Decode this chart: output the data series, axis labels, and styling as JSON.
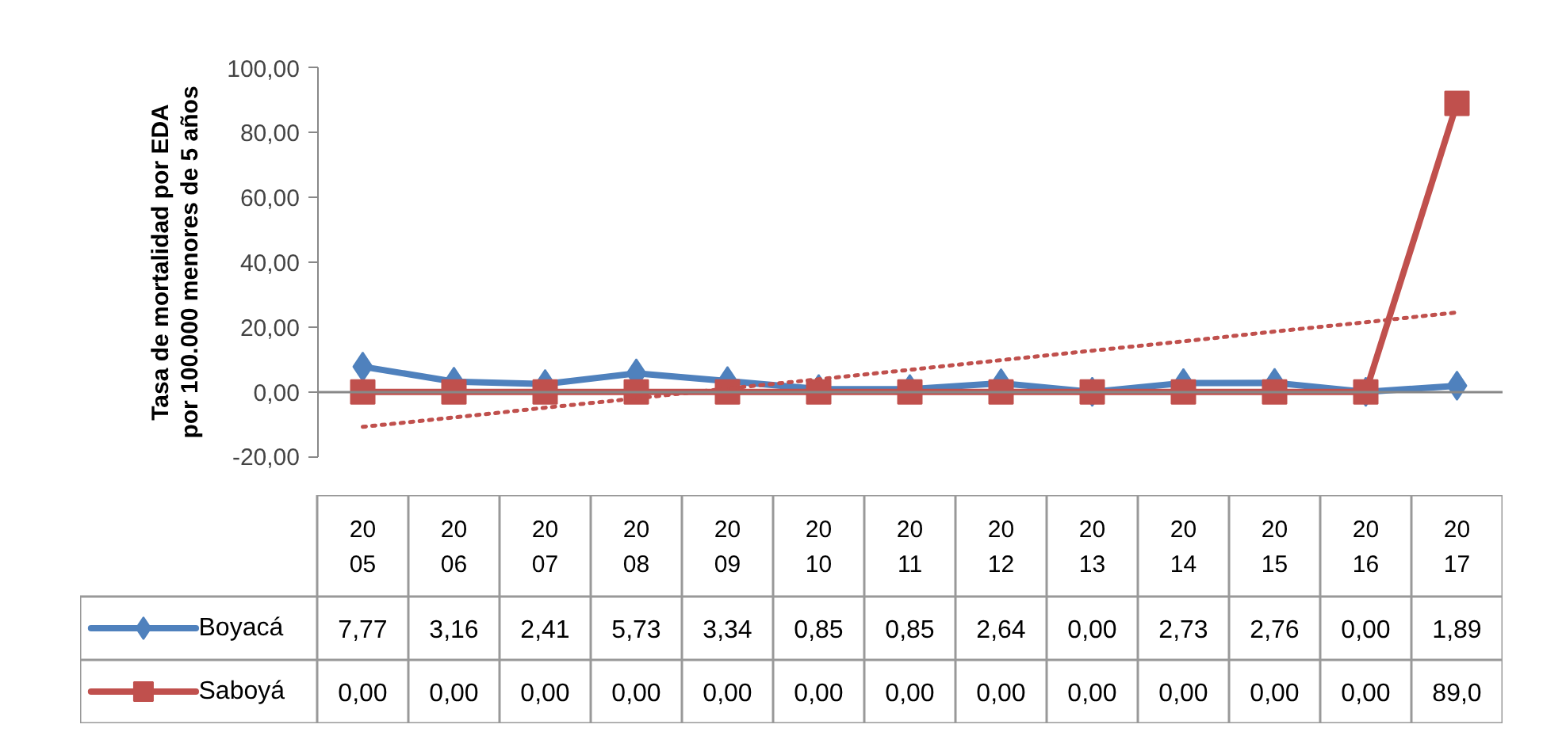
{
  "chart_data": {
    "type": "line",
    "ylabel": "Tasa de mortalidad por EDA por 100.000 menores de 5 años",
    "categories": [
      "2005",
      "2006",
      "2007",
      "2008",
      "2009",
      "2010",
      "2011",
      "2012",
      "2013",
      "2014",
      "2015",
      "2016",
      "2017"
    ],
    "series": [
      {
        "name": "Boyacá",
        "color": "#4f81bd",
        "marker": "diamond",
        "values": [
          7.77,
          3.16,
          2.41,
          5.73,
          3.34,
          0.85,
          0.85,
          2.64,
          0.0,
          2.73,
          2.76,
          0.0,
          1.89
        ],
        "value_labels": [
          "7,77",
          "3,16",
          "2,41",
          "5,73",
          "3,34",
          "0,85",
          "0,85",
          "2,64",
          "0,00",
          "2,73",
          "2,76",
          "0,00",
          "1,89"
        ]
      },
      {
        "name": "Saboyá",
        "color": "#c0504d",
        "marker": "square",
        "values": [
          0.0,
          0.0,
          0.0,
          0.0,
          0.0,
          0.0,
          0.0,
          0.0,
          0.0,
          0.0,
          0.0,
          0.0,
          89.0
        ],
        "value_labels": [
          "0,00",
          "0,00",
          "0,00",
          "0,00",
          "0,00",
          "0,00",
          "0,00",
          "0,00",
          "0,00",
          "0,00",
          "0,00",
          "0,00",
          "89,0"
        ]
      },
      {
        "type": "line",
        "color": "#c0504d",
        "marker": "none",
        "line_style": "dotted",
        "values": [
          -10.8,
          -7.9,
          -4.9,
          -2.0,
          1.0,
          3.9,
          6.8,
          9.8,
          12.7,
          15.6,
          18.6,
          21.5,
          24.5
        ]
      }
    ],
    "ylim": [
      -20,
      100
    ],
    "yticks": [
      {
        "value": -20,
        "label": "-20,00"
      },
      {
        "value": 0,
        "label": "0,00"
      },
      {
        "value": 20,
        "label": "20,00"
      },
      {
        "value": 40,
        "label": "40,00"
      },
      {
        "value": 60,
        "label": "60,00"
      },
      {
        "value": 80,
        "label": "80,00"
      },
      {
        "value": 100,
        "label": "100,00"
      }
    ],
    "legend": "bottom"
  }
}
